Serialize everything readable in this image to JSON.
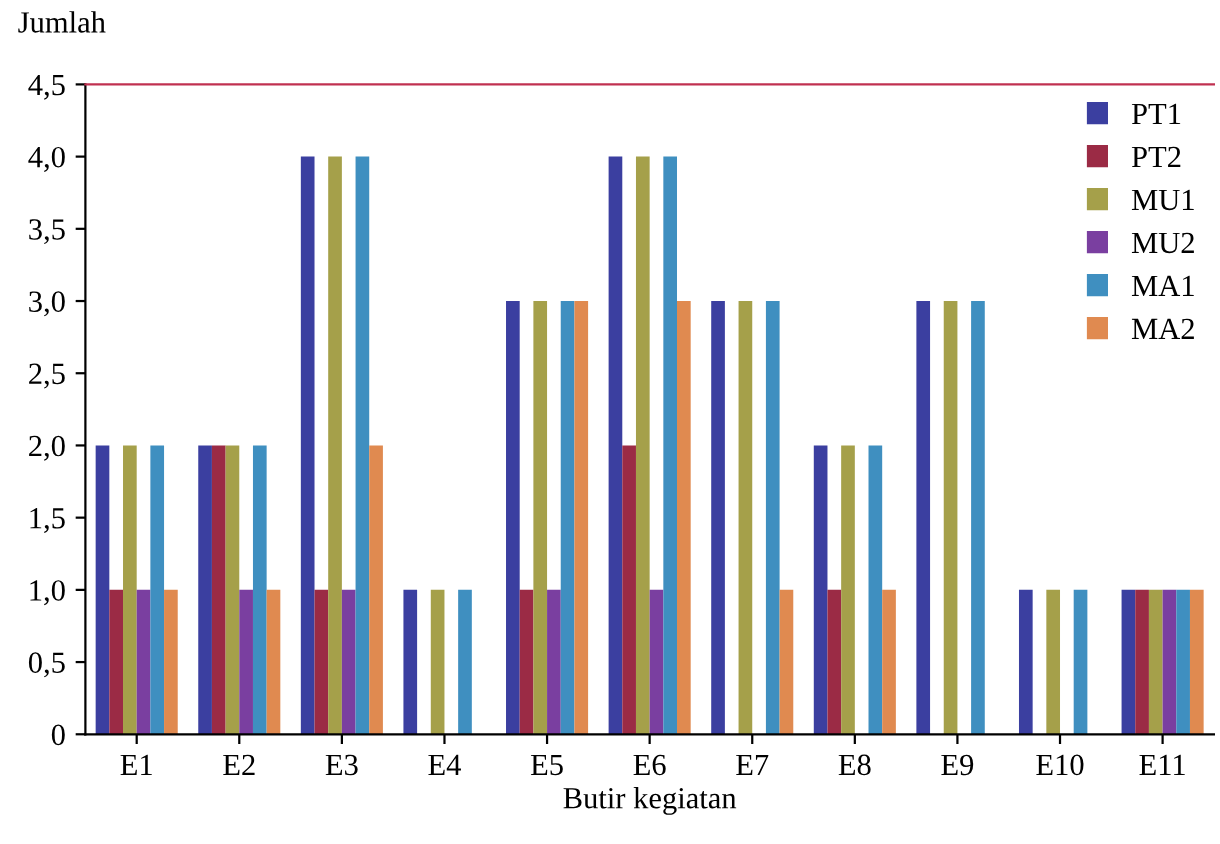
{
  "chart_data": {
    "type": "bar",
    "ylabel": "Jumlah",
    "xlabel": "Butir kegiatan",
    "categories": [
      "E1",
      "E2",
      "E3",
      "E4",
      "E5",
      "E6",
      "E7",
      "E8",
      "E9",
      "E10",
      "E11"
    ],
    "series": [
      {
        "name": "PT1",
        "color": "#3b3fa0",
        "values": [
          2,
          2,
          4,
          1,
          3,
          4,
          3,
          2,
          3,
          1,
          1
        ]
      },
      {
        "name": "PT2",
        "color": "#9b2b45",
        "values": [
          1,
          2,
          1,
          0,
          1,
          2,
          0,
          1,
          0,
          0,
          1
        ]
      },
      {
        "name": "MU1",
        "color": "#a5a04a",
        "values": [
          2,
          2,
          4,
          1,
          3,
          4,
          3,
          2,
          3,
          1,
          1
        ]
      },
      {
        "name": "MU2",
        "color": "#7a3fa0",
        "values": [
          1,
          1,
          1,
          0,
          1,
          1,
          0,
          0,
          0,
          0,
          1
        ]
      },
      {
        "name": "MA1",
        "color": "#3f8fc0",
        "values": [
          2,
          2,
          4,
          1,
          3,
          4,
          3,
          2,
          3,
          1,
          1
        ]
      },
      {
        "name": "MA2",
        "color": "#e08a50",
        "values": [
          1,
          1,
          2,
          0,
          3,
          3,
          1,
          1,
          0,
          0,
          1
        ]
      }
    ],
    "ylim": [
      0,
      4.5
    ],
    "yticks": [
      0,
      {
        "value": 0.5,
        "label": "0,5"
      },
      {
        "value": 1,
        "label": "1,0"
      },
      {
        "value": 1.5,
        "label": "1,5"
      },
      {
        "value": 2,
        "label": "2,0"
      },
      {
        "value": 2.5,
        "label": "2,5"
      },
      {
        "value": 3,
        "label": "3,0"
      },
      {
        "value": 3.5,
        "label": "3,5"
      },
      {
        "value": 4,
        "label": "4,0"
      },
      {
        "value": 4.5,
        "label": "4,5"
      }
    ],
    "grid": false,
    "legend": "top right"
  }
}
